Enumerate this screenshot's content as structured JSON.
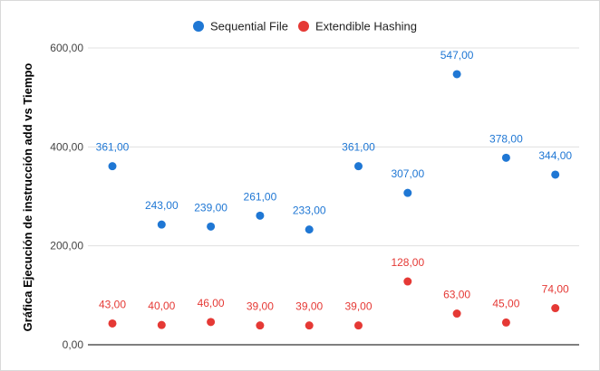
{
  "chart_data": {
    "type": "scatter",
    "title": "",
    "xlabel": "",
    "ylabel": "Gráfica Ejecución de instrucción add vs Tiempo",
    "ylim": [
      0,
      600
    ],
    "yticks": [
      0,
      200,
      400,
      600
    ],
    "ytick_labels": [
      "0,00",
      "200,00",
      "400,00",
      "600,00"
    ],
    "grid": "horizontal",
    "legend_position": "top",
    "x": [
      1,
      2,
      3,
      4,
      5,
      6,
      7,
      8,
      9,
      10
    ],
    "series": [
      {
        "name": "Sequential File",
        "color": "#1f77d4",
        "values": [
          361,
          243,
          239,
          261,
          233,
          361,
          307,
          547,
          378,
          344
        ],
        "labels": [
          "361,00",
          "243,00",
          "239,00",
          "261,00",
          "233,00",
          "361,00",
          "307,00",
          "547,00",
          "378,00",
          "344,00"
        ]
      },
      {
        "name": "Extendible Hashing",
        "color": "#e53935",
        "values": [
          43,
          40,
          46,
          39,
          39,
          39,
          128,
          63,
          45,
          74
        ],
        "labels": [
          "43,00",
          "40,00",
          "46,00",
          "39,00",
          "39,00",
          "39,00",
          "128,00",
          "63,00",
          "45,00",
          "74,00"
        ]
      }
    ]
  }
}
